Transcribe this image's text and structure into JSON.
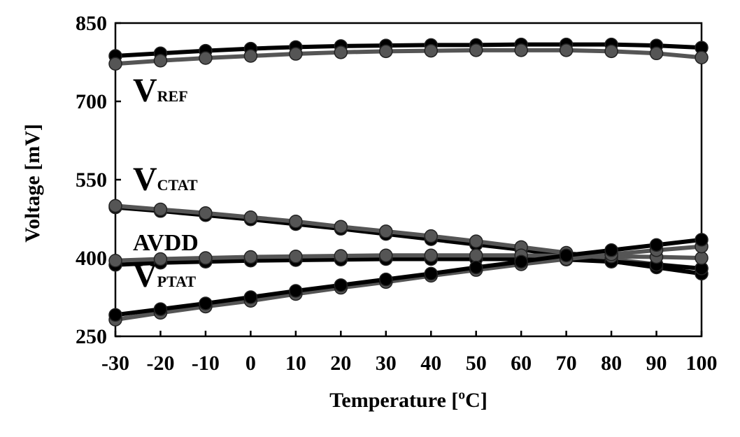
{
  "chart_data": {
    "type": "line",
    "title": "",
    "xlabel": "Temperature [ºC]",
    "ylabel": "Voltage [mV]",
    "x": [
      -30,
      -20,
      -10,
      0,
      10,
      20,
      30,
      40,
      50,
      60,
      70,
      80,
      90,
      100
    ],
    "xlim": [
      -30,
      100
    ],
    "ylim": [
      250,
      850
    ],
    "yticks": [
      250,
      400,
      550,
      700,
      850
    ],
    "xticks": [
      -30,
      -20,
      -10,
      0,
      10,
      20,
      30,
      40,
      50,
      60,
      70,
      80,
      90,
      100
    ],
    "grid": false,
    "legend": "none",
    "colors": {
      "dark": "#000000",
      "gray": "#555555"
    },
    "series": [
      {
        "name": "",
        "color": "#000000",
        "values": [
          787,
          792,
          797,
          801,
          804,
          806,
          807,
          808,
          808,
          809,
          809,
          809,
          807,
          803
        ]
      },
      {
        "name": "",
        "color": "#555555",
        "values": [
          772,
          778,
          783,
          787,
          791,
          794,
          796,
          797,
          798,
          798,
          798,
          796,
          792,
          784
        ]
      },
      {
        "name": "",
        "color": "#000000",
        "values": [
          497,
          490,
          482,
          474,
          465,
          456,
          446,
          436,
          426,
          416,
          405,
          394,
          382,
          370
        ]
      },
      {
        "name": "",
        "color": "#555555",
        "values": [
          500,
          493,
          486,
          478,
          470,
          460,
          451,
          442,
          432,
          421,
          410,
          398,
          388,
          380
        ]
      },
      {
        "name": "",
        "color": "#000000",
        "values": [
          387,
          391,
          393,
          395,
          396,
          397,
          398,
          398,
          398,
          398,
          397,
          393,
          387,
          380
        ]
      },
      {
        "name": "",
        "color": "#555555",
        "values": [
          395,
          398,
          400,
          402,
          403,
          404,
          405,
          405,
          405,
          405,
          404,
          403,
          402,
          400
        ]
      },
      {
        "name": "",
        "color": "#555555",
        "values": [
          282,
          295,
          307,
          318,
          331,
          343,
          354,
          366,
          377,
          388,
          398,
          407,
          415,
          422
        ]
      },
      {
        "name": "",
        "color": "#000000",
        "values": [
          291,
          302,
          313,
          325,
          337,
          348,
          359,
          370,
          382,
          393,
          405,
          415,
          425,
          435
        ]
      }
    ],
    "annotations": [
      {
        "main": "V",
        "sub": "REF",
        "x": -30,
        "y": 700
      },
      {
        "main": "V",
        "sub": "CTAT",
        "x": -30,
        "y": 530
      },
      {
        "main": "AVDD",
        "sub": "",
        "x": -30,
        "y": 415
      },
      {
        "main": "V",
        "sub": "PTAT",
        "x": -30,
        "y": 345
      }
    ]
  }
}
